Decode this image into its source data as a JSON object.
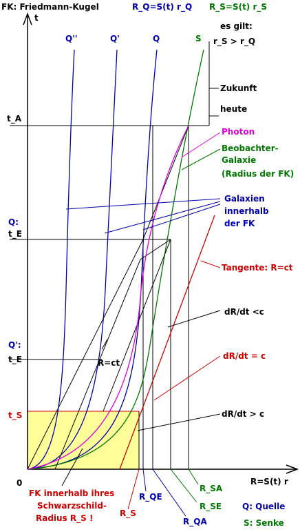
{
  "colors": {
    "black": "#000000",
    "blue": "#0000aa",
    "green": "#007700",
    "red": "#cc0000",
    "magenta": "#dd00dd",
    "yellow_region": "#ffff99",
    "yellow_border": "#cc0000"
  },
  "header": {
    "title": "FK: Friedmann-Kugel",
    "t_axis": "t",
    "formula_q": "R_Q=S(t) r_Q",
    "formula_s": "R_S=S(t) r_S",
    "es_gilt": "es gilt:",
    "inequality": "r_S > r_Q"
  },
  "curve_labels": {
    "q2": "Q''",
    "q1": "Q'",
    "q": "Q",
    "s": "S"
  },
  "left_labels": {
    "t_a": "t_A",
    "q_colon": "Q:",
    "t_e": "t_E",
    "q1_colon": "Q':",
    "t_e2": "t_E",
    "t_s": "t_S",
    "origin": "0"
  },
  "annotations": {
    "zukunft": "Zukunft",
    "heute": "heute",
    "photon": "Photon",
    "beobachter_1": "Beobachter-",
    "beobachter_2": "Galaxie",
    "beobachter_3": "(Radius der FK)",
    "galaxien_1": "Galaxien",
    "galaxien_2": "innerhalb",
    "galaxien_3": "der FK",
    "tangente": "Tangente: R=ct",
    "drdt_lt": "dR/dt <c",
    "r_ct": "R=ct",
    "drdt_eq": "dR/dt = c",
    "drdt_gt": "dR/dt > c"
  },
  "bottom_labels": {
    "x_axis": "R=S(t) r",
    "fk_1": "FK innerhalb ihres",
    "fk_2": "Schwarzschild-",
    "fk_3": "Radius R_S !",
    "r_s": "R_S",
    "r_qe": "R_QE",
    "r_qa": "R_QA",
    "r_se": "R_SE",
    "r_sa": "R_SA",
    "legend_q": "Q: Quelle",
    "legend_s": "S: Senke"
  }
}
